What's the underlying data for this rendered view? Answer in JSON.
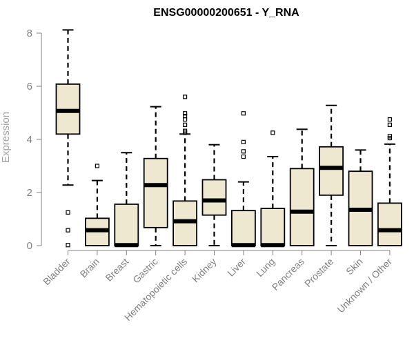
{
  "chart_data": {
    "type": "box",
    "title": "ENSG00000200651 - Y_RNA",
    "xlabel": "",
    "ylabel": "Expression",
    "ylim": [
      0,
      8.3
    ],
    "yticks": [
      0,
      2,
      4,
      6,
      8
    ],
    "categories": [
      "Bladder",
      "Brain",
      "Breast",
      "Gastric",
      "Hematopoietic cells",
      "Kidney",
      "Liver",
      "Lung",
      "Pancreas",
      "Prostate",
      "Skin",
      "Unknown / Other"
    ],
    "boxes": [
      {
        "min": 2.28,
        "q1": 4.2,
        "median": 5.07,
        "q3": 6.08,
        "max": 8.12,
        "outliers": [
          1.25,
          0.58,
          0.02
        ]
      },
      {
        "min": 0.0,
        "q1": 0.0,
        "median": 0.58,
        "q3": 1.03,
        "max": 2.45,
        "outliers": [
          3.0
        ]
      },
      {
        "min": 0.0,
        "q1": 0.0,
        "median": 0.02,
        "q3": 1.56,
        "max": 3.5,
        "outliers": []
      },
      {
        "min": 0.0,
        "q1": 0.68,
        "median": 2.28,
        "q3": 3.28,
        "max": 5.23,
        "outliers": []
      },
      {
        "min": 0.0,
        "q1": 0.0,
        "median": 0.92,
        "q3": 1.68,
        "max": 4.2,
        "outliers": [
          5.6,
          4.98,
          4.88,
          4.75,
          4.55,
          4.32,
          4.25
        ]
      },
      {
        "min": 0.0,
        "q1": 1.15,
        "median": 1.7,
        "q3": 2.48,
        "max": 3.8,
        "outliers": []
      },
      {
        "min": 0.0,
        "q1": 0.0,
        "median": 0.02,
        "q3": 1.32,
        "max": 2.4,
        "outliers": [
          4.98,
          3.9,
          3.55,
          3.35
        ]
      },
      {
        "min": 0.0,
        "q1": 0.0,
        "median": 0.02,
        "q3": 1.4,
        "max": 3.35,
        "outliers": [
          4.25
        ]
      },
      {
        "min": 0.0,
        "q1": 0.0,
        "median": 1.28,
        "q3": 2.9,
        "max": 4.38,
        "outliers": []
      },
      {
        "min": 0.0,
        "q1": 1.9,
        "median": 2.93,
        "q3": 3.72,
        "max": 5.28,
        "outliers": []
      },
      {
        "min": 0.0,
        "q1": 0.0,
        "median": 1.35,
        "q3": 2.8,
        "max": 3.6,
        "outliers": []
      },
      {
        "min": 0.0,
        "q1": 0.0,
        "median": 0.58,
        "q3": 1.6,
        "max": 3.82,
        "outliers": [
          4.75,
          4.55,
          4.12,
          4.05
        ]
      }
    ],
    "colors": {
      "box_fill": "#EEE8D0",
      "stroke": "#000000",
      "axis": "#808080",
      "tick_label": "#808080",
      "ylabel": "#a0a0a0",
      "title": "#000000"
    },
    "grid": false,
    "legend": "none"
  }
}
